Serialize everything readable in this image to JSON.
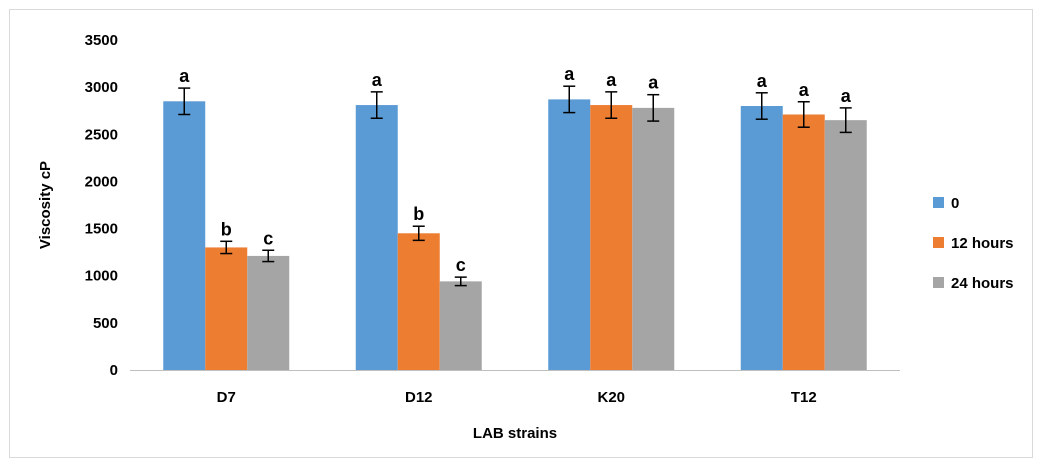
{
  "chart_data": {
    "type": "bar",
    "title": "",
    "xlabel": "LAB strains",
    "ylabel": "Viscosity  cP",
    "ylim": [
      0,
      3500
    ],
    "yticks": [
      0,
      500,
      1000,
      1500,
      2000,
      2500,
      3000,
      3500
    ],
    "grid": false,
    "legend_position": "right",
    "categories": [
      "D7",
      "D12",
      "K20",
      "T12"
    ],
    "series": [
      {
        "name": "0",
        "color": "#5b9bd5",
        "values": [
          2850,
          2810,
          2870,
          2800
        ],
        "errors": [
          140,
          140,
          140,
          140
        ],
        "labels": [
          "a",
          "a",
          "a",
          "a"
        ]
      },
      {
        "name": "12 hours",
        "color": "#ed7d31",
        "values": [
          1300,
          1450,
          2810,
          2710
        ],
        "errors": [
          65,
          75,
          140,
          135
        ],
        "labels": [
          "b",
          "b",
          "a",
          "a"
        ]
      },
      {
        "name": "24 hours",
        "color": "#a5a5a5",
        "values": [
          1210,
          940,
          2780,
          2650
        ],
        "errors": [
          60,
          45,
          140,
          130
        ],
        "labels": [
          "c",
          "c",
          "a",
          "a"
        ]
      }
    ]
  }
}
